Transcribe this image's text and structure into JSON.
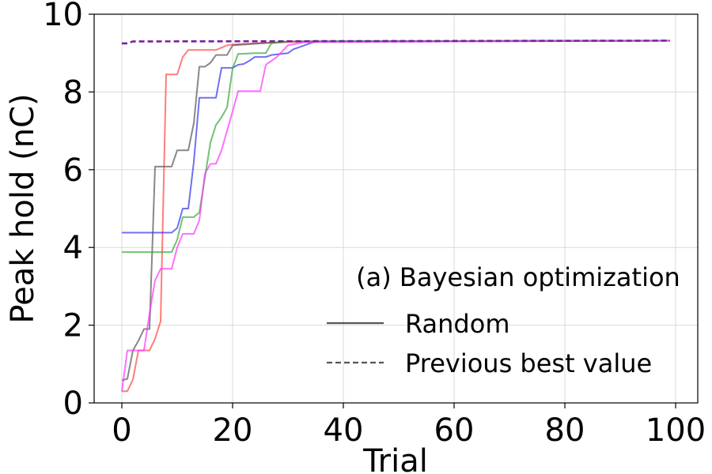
{
  "chart_data": {
    "type": "line",
    "title": "(a) Bayesian optimization",
    "xlabel": "Trial",
    "ylabel": "Peak hold (nC)",
    "xlim": [
      -5,
      104
    ],
    "ylim": [
      0,
      10
    ],
    "xticks": [
      0,
      20,
      40,
      60,
      80,
      100
    ],
    "yticks": [
      0,
      2,
      4,
      6,
      8,
      10
    ],
    "grid": true,
    "legend": {
      "placement": "lower-right",
      "entries": [
        {
          "label": "Random",
          "style": "solid",
          "color": "#555555"
        },
        {
          "label": "Previous best value",
          "style": "dashed",
          "color": "#555555"
        }
      ]
    },
    "series": [
      {
        "style": "solid",
        "color": "#ff4444",
        "points": [
          [
            0,
            0.3
          ],
          [
            1,
            0.3
          ],
          [
            2,
            0.6
          ],
          [
            3,
            1.35
          ],
          [
            5,
            1.35
          ],
          [
            6,
            1.65
          ],
          [
            7,
            2.1
          ],
          [
            8,
            8.45
          ],
          [
            10,
            8.45
          ],
          [
            11,
            8.9
          ],
          [
            12,
            9.08
          ],
          [
            17,
            9.08
          ],
          [
            18,
            9.14
          ],
          [
            19,
            9.2
          ],
          [
            20,
            9.22
          ],
          [
            25,
            9.26
          ],
          [
            35,
            9.3
          ],
          [
            99,
            9.32
          ]
        ]
      },
      {
        "style": "solid",
        "color": "#555555",
        "points": [
          [
            0,
            0.58
          ],
          [
            1,
            0.62
          ],
          [
            2,
            1.35
          ],
          [
            3,
            1.6
          ],
          [
            4,
            1.9
          ],
          [
            5,
            1.9
          ],
          [
            6,
            6.08
          ],
          [
            9,
            6.08
          ],
          [
            10,
            6.5
          ],
          [
            12,
            6.5
          ],
          [
            13,
            7.2
          ],
          [
            14,
            8.65
          ],
          [
            15,
            8.65
          ],
          [
            16,
            8.75
          ],
          [
            17,
            8.95
          ],
          [
            19,
            8.95
          ],
          [
            20,
            9.2
          ],
          [
            30,
            9.3
          ],
          [
            99,
            9.32
          ]
        ]
      },
      {
        "style": "solid",
        "color": "#3333ee",
        "points": [
          [
            0,
            4.38
          ],
          [
            9,
            4.38
          ],
          [
            10,
            4.5
          ],
          [
            11,
            5.0
          ],
          [
            12,
            5.0
          ],
          [
            13,
            6.2
          ],
          [
            14,
            7.85
          ],
          [
            17,
            7.85
          ],
          [
            18,
            8.62
          ],
          [
            20,
            8.62
          ],
          [
            21,
            8.7
          ],
          [
            22,
            8.72
          ],
          [
            23,
            8.8
          ],
          [
            24,
            8.9
          ],
          [
            26,
            8.9
          ],
          [
            27,
            8.95
          ],
          [
            30,
            9.0
          ],
          [
            31,
            9.1
          ],
          [
            33,
            9.2
          ],
          [
            35,
            9.3
          ],
          [
            99,
            9.32
          ]
        ]
      },
      {
        "style": "solid",
        "color": "#33aa33",
        "points": [
          [
            0,
            3.88
          ],
          [
            9,
            3.88
          ],
          [
            10,
            4.2
          ],
          [
            11,
            4.78
          ],
          [
            13,
            4.78
          ],
          [
            14,
            4.9
          ],
          [
            15,
            5.8
          ],
          [
            16,
            6.7
          ],
          [
            17,
            7.15
          ],
          [
            18,
            7.35
          ],
          [
            19,
            7.6
          ],
          [
            20,
            8.6
          ],
          [
            21,
            8.98
          ],
          [
            22,
            8.98
          ],
          [
            24,
            9.0
          ],
          [
            26,
            9.0
          ],
          [
            27,
            9.25
          ],
          [
            30,
            9.3
          ],
          [
            99,
            9.32
          ]
        ]
      },
      {
        "style": "solid",
        "color": "#ff33ff",
        "points": [
          [
            0,
            0.3
          ],
          [
            1,
            1.35
          ],
          [
            4,
            1.35
          ],
          [
            5,
            2.3
          ],
          [
            6,
            3.15
          ],
          [
            7,
            3.45
          ],
          [
            9,
            3.45
          ],
          [
            10,
            4.0
          ],
          [
            11,
            4.35
          ],
          [
            13,
            4.35
          ],
          [
            14,
            4.7
          ],
          [
            15,
            5.9
          ],
          [
            16,
            6.15
          ],
          [
            17,
            6.15
          ],
          [
            18,
            6.5
          ],
          [
            20,
            7.5
          ],
          [
            21,
            8.02
          ],
          [
            25,
            8.02
          ],
          [
            26,
            8.7
          ],
          [
            28,
            8.9
          ],
          [
            30,
            9.2
          ],
          [
            33,
            9.28
          ],
          [
            99,
            9.32
          ]
        ]
      },
      {
        "style": "dashed",
        "color": "#7a1fa0",
        "points": [
          [
            0,
            9.25
          ],
          [
            1,
            9.25
          ],
          [
            2,
            9.3
          ],
          [
            99,
            9.32
          ]
        ]
      }
    ]
  }
}
